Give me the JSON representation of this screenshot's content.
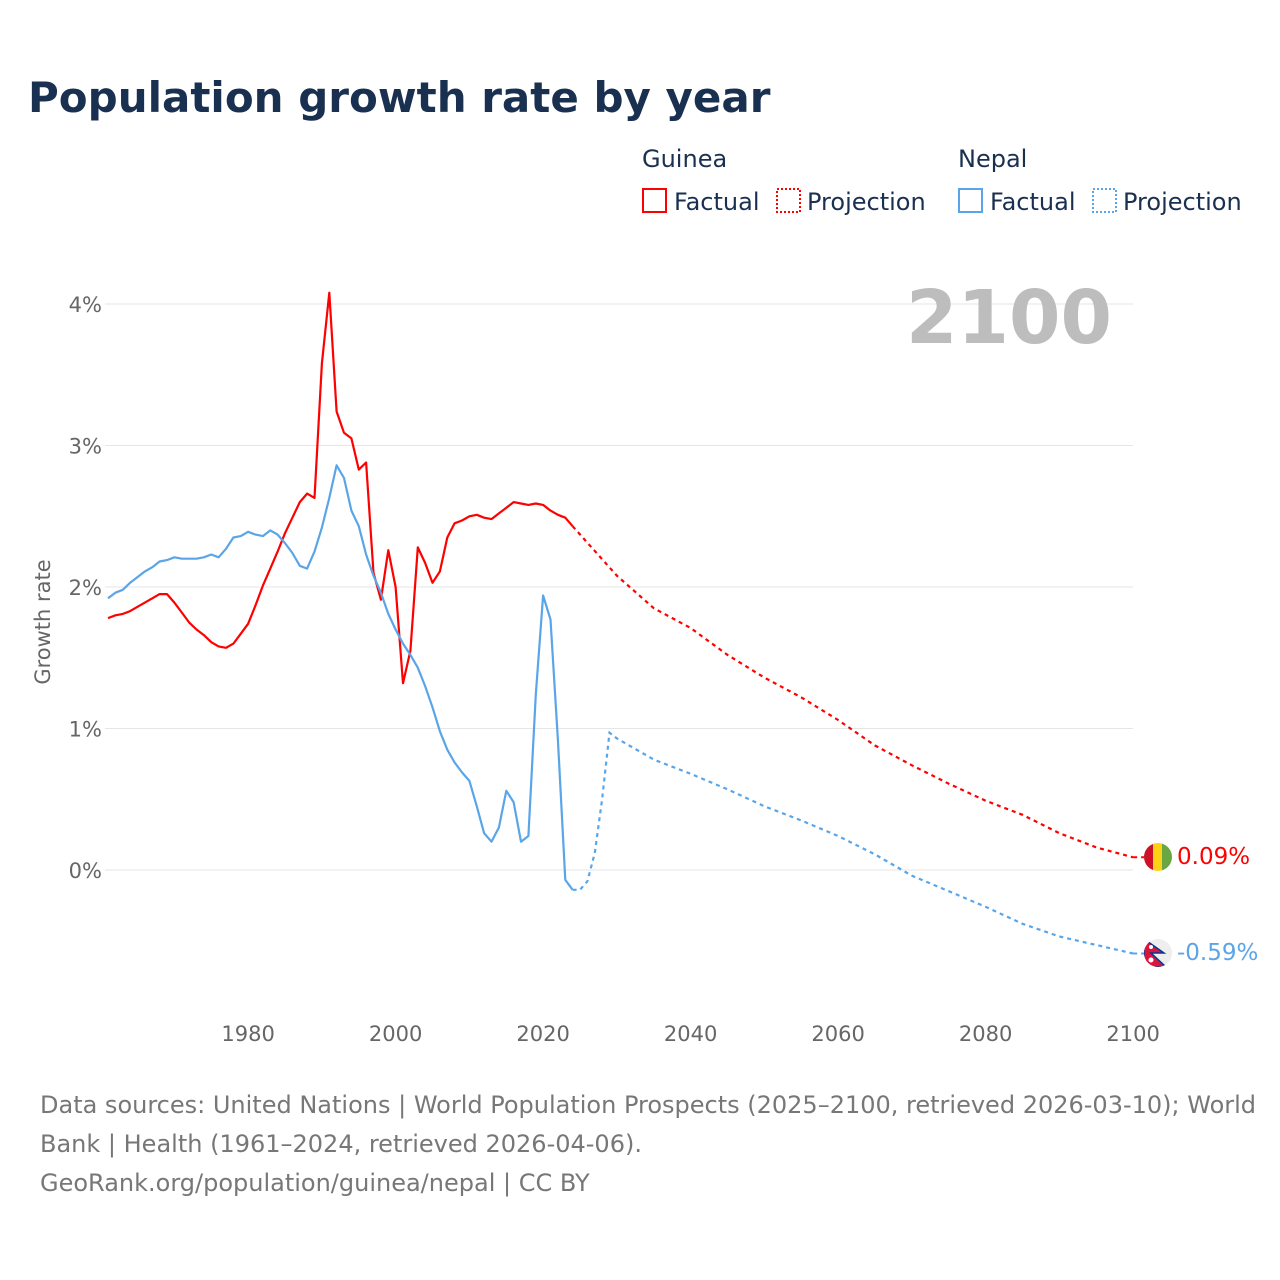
{
  "title": "Population growth rate by year",
  "year_display": "2100",
  "legend": {
    "groups": [
      {
        "name": "Guinea",
        "factual": "Factual",
        "projection": "Projection",
        "color": "#ff0000"
      },
      {
        "name": "Nepal",
        "factual": "Factual",
        "projection": "Projection",
        "color": "#5aa5e8"
      }
    ]
  },
  "footer": {
    "line1": "Data sources: United Nations | World Population Prospects (2025–2100, retrieved 2026-03-10); World",
    "line2": "Bank | Health (1961–2024, retrieved 2026-04-06).",
    "line3": "GeoRank.org/population/guinea/nepal | CC BY"
  },
  "chart_data": {
    "type": "line",
    "title": "Population growth rate by year",
    "xlabel": "",
    "ylabel": "Growth rate",
    "xlim": [
      1961,
      2100
    ],
    "ylim": [
      -0.8,
      4.2
    ],
    "x_ticks": [
      "1980",
      "2000",
      "2020",
      "2040",
      "2060",
      "2080",
      "2100"
    ],
    "x_tick_values": [
      1980,
      2000,
      2020,
      2040,
      2060,
      2080,
      2100
    ],
    "y_ticks": [
      "0%",
      "1%",
      "2%",
      "3%",
      "4%"
    ],
    "y_tick_values": [
      0,
      1,
      2,
      3,
      4
    ],
    "grid": true,
    "legend_position": "top-right",
    "series": [
      {
        "name": "Guinea",
        "color": "#ff0000",
        "end_label": "0.09%",
        "flag": "guinea-flag",
        "factual": {
          "x_start": 1961,
          "values": [
            1.78,
            1.8,
            1.81,
            1.83,
            1.86,
            1.89,
            1.92,
            1.95,
            1.95,
            1.89,
            1.82,
            1.75,
            1.7,
            1.66,
            1.61,
            1.58,
            1.57,
            1.6,
            1.67,
            1.74,
            1.87,
            2.01,
            2.13,
            2.25,
            2.38,
            2.49,
            2.6,
            2.66,
            2.63,
            3.58,
            4.08,
            3.24,
            3.09,
            3.05,
            2.83,
            2.88,
            2.1,
            1.91,
            2.26,
            2.0,
            1.32,
            1.55,
            2.28,
            2.17,
            2.03,
            2.11,
            2.35,
            2.45,
            2.47,
            2.5,
            2.51,
            2.49,
            2.48,
            2.52,
            2.56,
            2.6,
            2.59,
            2.58,
            2.59,
            2.58,
            2.54,
            2.51,
            2.49,
            2.43
          ]
        },
        "projection": {
          "x": [
            2024,
            2030,
            2035,
            2040,
            2045,
            2050,
            2055,
            2060,
            2065,
            2070,
            2075,
            2080,
            2085,
            2090,
            2095,
            2100
          ],
          "values": [
            2.43,
            2.08,
            1.85,
            1.71,
            1.52,
            1.36,
            1.22,
            1.06,
            0.88,
            0.74,
            0.61,
            0.49,
            0.39,
            0.26,
            0.16,
            0.09
          ]
        }
      },
      {
        "name": "Nepal",
        "color": "#5aa5e8",
        "end_label": "-0.59%",
        "flag": "nepal-flag",
        "factual": {
          "x_start": 1961,
          "values": [
            1.92,
            1.96,
            1.98,
            2.03,
            2.07,
            2.11,
            2.14,
            2.18,
            2.19,
            2.21,
            2.2,
            2.2,
            2.2,
            2.21,
            2.23,
            2.21,
            2.27,
            2.35,
            2.36,
            2.39,
            2.37,
            2.36,
            2.4,
            2.37,
            2.31,
            2.24,
            2.15,
            2.13,
            2.25,
            2.42,
            2.63,
            2.86,
            2.77,
            2.54,
            2.43,
            2.23,
            2.08,
            1.96,
            1.81,
            1.7,
            1.6,
            1.52,
            1.43,
            1.3,
            1.15,
            0.98,
            0.85,
            0.76,
            0.69,
            0.63,
            0.45,
            0.26,
            0.2,
            0.3,
            0.56,
            0.48,
            0.2,
            0.24,
            1.24,
            1.94,
            1.77,
            0.92,
            -0.07,
            -0.14
          ]
        },
        "projection": {
          "x": [
            2024,
            2025,
            2026,
            2027,
            2028,
            2029,
            2030,
            2035,
            2040,
            2045,
            2050,
            2055,
            2060,
            2065,
            2070,
            2075,
            2080,
            2085,
            2090,
            2095,
            2100
          ],
          "values": [
            -0.14,
            -0.14,
            -0.08,
            0.12,
            0.5,
            0.97,
            0.93,
            0.78,
            0.68,
            0.57,
            0.45,
            0.35,
            0.24,
            0.11,
            -0.04,
            -0.15,
            -0.26,
            -0.38,
            -0.47,
            -0.53,
            -0.59
          ]
        }
      }
    ]
  }
}
